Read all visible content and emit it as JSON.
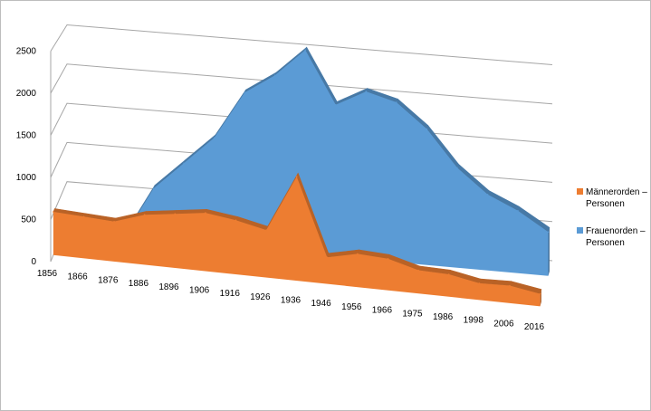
{
  "chart_data": {
    "type": "area",
    "view": "3d",
    "x": [
      "1856",
      "1866",
      "1876",
      "1886",
      "1896",
      "1906",
      "1916",
      "1926",
      "1936",
      "1946",
      "1956",
      "1966",
      "1975",
      "1986",
      "1998",
      "2006",
      "2016"
    ],
    "ylim": [
      0,
      2500
    ],
    "yticks": [
      0,
      500,
      1000,
      1500,
      2000,
      2500
    ],
    "grid": true,
    "legend_position": "right",
    "series": [
      {
        "name": "Männerorden – Personen",
        "color": "#ed7d31",
        "values": [
          520,
          500,
          480,
          600,
          650,
          700,
          650,
          570,
          1250,
          320,
          400,
          380,
          280,
          270,
          200,
          210,
          150
        ]
      },
      {
        "name": "Frauenorden – Personen",
        "color": "#5b9bd5",
        "values": [
          0,
          0,
          0,
          650,
          1000,
          1350,
          1950,
          2200,
          2550,
          1900,
          2100,
          2000,
          1700,
          1250,
          950,
          780,
          550
        ]
      }
    ]
  }
}
